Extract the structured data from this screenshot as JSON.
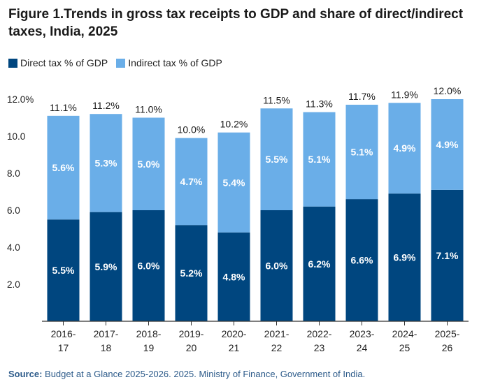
{
  "page": {
    "title": "Figure 1.Trends in gross tax receipts to GDP and share of direct/indirect taxes, India, 2025",
    "source_label": "Source:",
    "source_text": "Budget at a Glance 2025-2026. 2025. Ministry of Finance, Government of India."
  },
  "colors": {
    "direct": "#00467f",
    "indirect": "#6aaee8",
    "axis": "#333333",
    "text": "#222222"
  },
  "chart_data": {
    "type": "bar",
    "stacked": true,
    "title": "Figure 1.Trends in gross tax receipts to GDP and share of direct/indirect taxes, India, 2025",
    "xlabel": "",
    "ylabel": "",
    "ylim": [
      0,
      12
    ],
    "yticks": [
      2,
      4,
      6,
      8,
      10,
      12
    ],
    "ytick_labels": [
      "2.0",
      "4.0",
      "6.0",
      "8.0",
      "10.0",
      "12.0%"
    ],
    "grid": false,
    "legend_position": "top-left",
    "categories": [
      "2016-\n17",
      "2017-\n18",
      "2018-\n19",
      "2019-\n20",
      "2020-\n21",
      "2021-\n22",
      "2022-\n23",
      "2023-\n24",
      "2024-\n25",
      "2025-\n26"
    ],
    "series": [
      {
        "name": "Direct tax % of GDP",
        "values": [
          5.5,
          5.9,
          6.0,
          5.2,
          4.8,
          6.0,
          6.2,
          6.6,
          6.9,
          7.1
        ],
        "labels": [
          "5.5%",
          "5.9%",
          "6.0%",
          "5.2%",
          "4.8%",
          "6.0%",
          "6.2%",
          "6.6%",
          "6.9%",
          "7.1%"
        ]
      },
      {
        "name": "Indirect tax % of GDP",
        "values": [
          5.6,
          5.3,
          5.0,
          4.7,
          5.4,
          5.5,
          5.1,
          5.1,
          4.9,
          4.9
        ],
        "labels": [
          "5.6%",
          "5.3%",
          "5.0%",
          "4.7%",
          "5.4%",
          "5.5%",
          "5.1%",
          "5.1%",
          "4.9%",
          "4.9%"
        ]
      }
    ],
    "totals": [
      11.1,
      11.2,
      11.0,
      10.0,
      10.2,
      11.5,
      11.3,
      11.7,
      11.9,
      12.0
    ],
    "total_labels": [
      "11.1%",
      "11.2%",
      "11.0%",
      "10.0%",
      "10.2%",
      "11.5%",
      "11.3%",
      "11.7%",
      "11.9%",
      "12.0%"
    ]
  }
}
